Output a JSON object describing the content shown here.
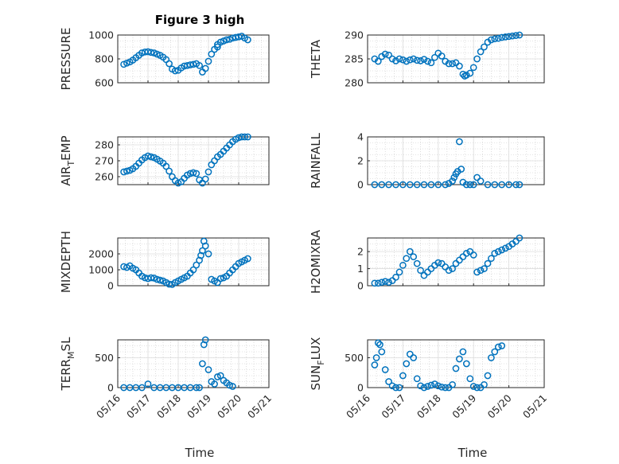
{
  "figure": {
    "title": "Figure 3 high",
    "xlabel": "Time",
    "x_tick_labels": [
      "05/16",
      "05/17",
      "05/18",
      "05/19",
      "05/20",
      "05/21"
    ],
    "marker_color": "#0072BD"
  },
  "chart_data": [
    {
      "type": "scatter",
      "panel": "top-left",
      "ylabel": "PRESSURE",
      "ylim": [
        600,
        1000
      ],
      "yticks": [
        600,
        800,
        1000
      ],
      "xlim": [
        0,
        5
      ],
      "grid": true,
      "series": [
        {
          "x": [
            0.2,
            0.3,
            0.4,
            0.5,
            0.6,
            0.7,
            0.8,
            0.9,
            1.0,
            1.1,
            1.2,
            1.3,
            1.4,
            1.5,
            1.6,
            1.7,
            1.8,
            1.9,
            2.0,
            2.1,
            2.2,
            2.3,
            2.4,
            2.5,
            2.6,
            2.7,
            2.8,
            2.9,
            3.0,
            3.1,
            3.2,
            3.3,
            3.3,
            3.4,
            3.5,
            3.6,
            3.7,
            3.8,
            3.9,
            4.0,
            4.1,
            4.2,
            4.3
          ],
          "y": [
            755,
            765,
            775,
            790,
            810,
            830,
            850,
            858,
            860,
            855,
            850,
            840,
            830,
            815,
            795,
            760,
            715,
            700,
            705,
            725,
            740,
            745,
            750,
            755,
            760,
            745,
            690,
            720,
            780,
            840,
            880,
            900,
            920,
            940,
            950,
            960,
            965,
            975,
            980,
            985,
            990,
            975,
            960
          ]
        }
      ]
    },
    {
      "type": "scatter",
      "panel": "top-right",
      "ylabel": "THETA",
      "ylim": [
        280,
        290
      ],
      "yticks": [
        280,
        285,
        290
      ],
      "xlim": [
        0,
        5
      ],
      "grid": true,
      "series": [
        {
          "x": [
            0.2,
            0.3,
            0.4,
            0.5,
            0.6,
            0.7,
            0.8,
            0.9,
            1.0,
            1.1,
            1.2,
            1.3,
            1.4,
            1.5,
            1.6,
            1.7,
            1.8,
            1.9,
            2.0,
            2.1,
            2.2,
            2.3,
            2.4,
            2.5,
            2.6,
            2.7,
            2.75,
            2.8,
            2.9,
            3.0,
            3.1,
            3.2,
            3.3,
            3.4,
            3.5,
            3.6,
            3.7,
            3.8,
            3.9,
            4.0,
            4.1,
            4.2,
            4.3
          ],
          "y": [
            285,
            284.5,
            285.5,
            286,
            285.8,
            285,
            284.6,
            285,
            284.8,
            284.5,
            284.8,
            285,
            284.7,
            284.6,
            284.9,
            284.5,
            284.2,
            285.3,
            286.2,
            285.6,
            284.5,
            284,
            284,
            284.2,
            283.5,
            281.8,
            281.4,
            281.6,
            282,
            283.2,
            285,
            286.5,
            287.5,
            288.5,
            289,
            289.2,
            289.3,
            289.5,
            289.6,
            289.7,
            289.8,
            289.9,
            290
          ]
        }
      ]
    },
    {
      "type": "scatter",
      "panel": "second-left",
      "ylabel": "AIR_TEMP",
      "ylim": [
        255,
        285
      ],
      "yticks": [
        260,
        270,
        280
      ],
      "xlim": [
        0,
        5
      ],
      "grid": true,
      "series": [
        {
          "x": [
            0.2,
            0.3,
            0.4,
            0.5,
            0.6,
            0.7,
            0.8,
            0.9,
            1.0,
            1.1,
            1.2,
            1.3,
            1.4,
            1.5,
            1.6,
            1.7,
            1.8,
            1.9,
            2.0,
            2.1,
            2.2,
            2.3,
            2.4,
            2.5,
            2.6,
            2.7,
            2.8,
            2.9,
            3.0,
            3.1,
            3.2,
            3.3,
            3.4,
            3.5,
            3.6,
            3.7,
            3.8,
            3.9,
            4.0,
            4.1,
            4.2,
            4.3
          ],
          "y": [
            263,
            263.5,
            264,
            265,
            266.5,
            268.5,
            270.5,
            272,
            273,
            272.5,
            272,
            271,
            269.8,
            268.5,
            266.5,
            263.5,
            260,
            257.5,
            256,
            256.8,
            259,
            261,
            262,
            262.5,
            262,
            258,
            256,
            258.5,
            263,
            267.5,
            270,
            272.5,
            274,
            276,
            278,
            280,
            282,
            283.5,
            284.5,
            285,
            285.2,
            285.5
          ]
        }
      ]
    },
    {
      "type": "scatter",
      "panel": "second-right",
      "ylabel": "RAINFALL",
      "ylim": [
        0,
        4
      ],
      "yticks": [
        0,
        2,
        4
      ],
      "xlim": [
        0,
        5
      ],
      "grid": true,
      "series": [
        {
          "x": [
            0.2,
            0.4,
            0.6,
            0.8,
            1.0,
            1.2,
            1.4,
            1.6,
            1.8,
            2.0,
            2.2,
            2.3,
            2.4,
            2.45,
            2.5,
            2.55,
            2.6,
            2.65,
            2.7,
            2.8,
            2.9,
            3.0,
            3.1,
            3.2,
            3.4,
            3.6,
            3.8,
            4.0,
            4.2,
            4.3
          ],
          "y": [
            0,
            0,
            0,
            0,
            0,
            0,
            0,
            0,
            0,
            0,
            0,
            0.1,
            0.3,
            0.6,
            0.9,
            1.1,
            3.6,
            1.3,
            0.2,
            0,
            0,
            0,
            0.6,
            0.3,
            0,
            0,
            0,
            0,
            0,
            0
          ]
        }
      ]
    },
    {
      "type": "scatter",
      "panel": "third-left",
      "ylabel": "MIXDEPTH",
      "ylim": [
        0,
        3000
      ],
      "yticks": [
        0,
        1000,
        2000
      ],
      "xlim": [
        0,
        5
      ],
      "grid": true,
      "series": [
        {
          "x": [
            0.2,
            0.3,
            0.4,
            0.5,
            0.6,
            0.7,
            0.8,
            0.9,
            1.0,
            1.1,
            1.2,
            1.3,
            1.4,
            1.5,
            1.6,
            1.7,
            1.8,
            1.9,
            2.0,
            2.1,
            2.2,
            2.3,
            2.4,
            2.5,
            2.6,
            2.7,
            2.75,
            2.8,
            2.85,
            2.9,
            3.0,
            3.1,
            3.2,
            3.3,
            3.4,
            3.5,
            3.6,
            3.7,
            3.8,
            3.9,
            4.0,
            4.1,
            4.2,
            4.3
          ],
          "y": [
            1200,
            1150,
            1250,
            1100,
            1000,
            800,
            600,
            500,
            450,
            500,
            480,
            400,
            350,
            300,
            200,
            100,
            80,
            200,
            300,
            400,
            500,
            600,
            800,
            1000,
            1300,
            1600,
            1900,
            2200,
            2800,
            2500,
            2000,
            400,
            300,
            200,
            450,
            500,
            600,
            800,
            1000,
            1200,
            1400,
            1500,
            1600,
            1700
          ]
        }
      ]
    },
    {
      "type": "scatter",
      "panel": "third-right",
      "ylabel": "H2OMIXRA",
      "ylim": [
        0,
        2.8
      ],
      "yticks": [
        0,
        1,
        2
      ],
      "xlim": [
        0,
        5
      ],
      "grid": true,
      "series": [
        {
          "x": [
            0.2,
            0.3,
            0.4,
            0.5,
            0.6,
            0.7,
            0.8,
            0.9,
            1.0,
            1.1,
            1.2,
            1.3,
            1.4,
            1.5,
            1.6,
            1.7,
            1.8,
            1.9,
            2.0,
            2.1,
            2.2,
            2.3,
            2.4,
            2.5,
            2.6,
            2.7,
            2.8,
            2.9,
            3.0,
            3.1,
            3.2,
            3.3,
            3.4,
            3.5,
            3.6,
            3.7,
            3.8,
            3.9,
            4.0,
            4.1,
            4.2,
            4.3
          ],
          "y": [
            0.15,
            0.15,
            0.2,
            0.25,
            0.2,
            0.3,
            0.5,
            0.8,
            1.2,
            1.6,
            2.0,
            1.7,
            1.3,
            0.9,
            0.6,
            0.8,
            1.0,
            1.2,
            1.35,
            1.3,
            1.1,
            0.9,
            1.0,
            1.3,
            1.5,
            1.7,
            1.9,
            2.0,
            1.8,
            0.8,
            0.9,
            1.0,
            1.3,
            1.6,
            1.9,
            2.0,
            2.1,
            2.2,
            2.3,
            2.45,
            2.6,
            2.8
          ]
        }
      ]
    },
    {
      "type": "scatter",
      "panel": "bottom-left",
      "ylabel": "TERR_MSL",
      "ylim": [
        0,
        800
      ],
      "yticks": [
        0,
        500
      ],
      "xlim": [
        0,
        5
      ],
      "grid": true,
      "series": [
        {
          "x": [
            0.2,
            0.4,
            0.6,
            0.8,
            1.0,
            1.2,
            1.4,
            1.6,
            1.8,
            2.0,
            2.2,
            2.4,
            2.6,
            2.7,
            2.8,
            2.85,
            2.9,
            3.0,
            3.1,
            3.2,
            3.3,
            3.4,
            3.5,
            3.6,
            3.7,
            3.8
          ],
          "y": [
            0,
            0,
            0,
            0,
            60,
            0,
            0,
            0,
            0,
            0,
            0,
            0,
            0,
            0,
            400,
            720,
            800,
            300,
            100,
            60,
            180,
            200,
            120,
            80,
            40,
            20
          ]
        }
      ]
    },
    {
      "type": "scatter",
      "panel": "bottom-right",
      "ylabel": "SUN_FLUX",
      "ylim": [
        0,
        800
      ],
      "yticks": [
        0,
        500
      ],
      "xlim": [
        0,
        5
      ],
      "grid": true,
      "series": [
        {
          "x": [
            0.2,
            0.25,
            0.3,
            0.35,
            0.4,
            0.5,
            0.6,
            0.7,
            0.8,
            0.9,
            1.0,
            1.1,
            1.2,
            1.3,
            1.4,
            1.5,
            1.6,
            1.7,
            1.8,
            1.9,
            2.0,
            2.1,
            2.2,
            2.3,
            2.4,
            2.5,
            2.6,
            2.7,
            2.8,
            2.9,
            3.0,
            3.1,
            3.2,
            3.3,
            3.4,
            3.5,
            3.6,
            3.7,
            3.8
          ],
          "y": [
            380,
            500,
            750,
            720,
            600,
            300,
            100,
            30,
            0,
            0,
            200,
            400,
            560,
            500,
            150,
            30,
            0,
            20,
            40,
            60,
            30,
            10,
            0,
            0,
            50,
            320,
            480,
            600,
            400,
            150,
            20,
            0,
            0,
            50,
            200,
            500,
            600,
            680,
            700
          ]
        }
      ]
    }
  ]
}
